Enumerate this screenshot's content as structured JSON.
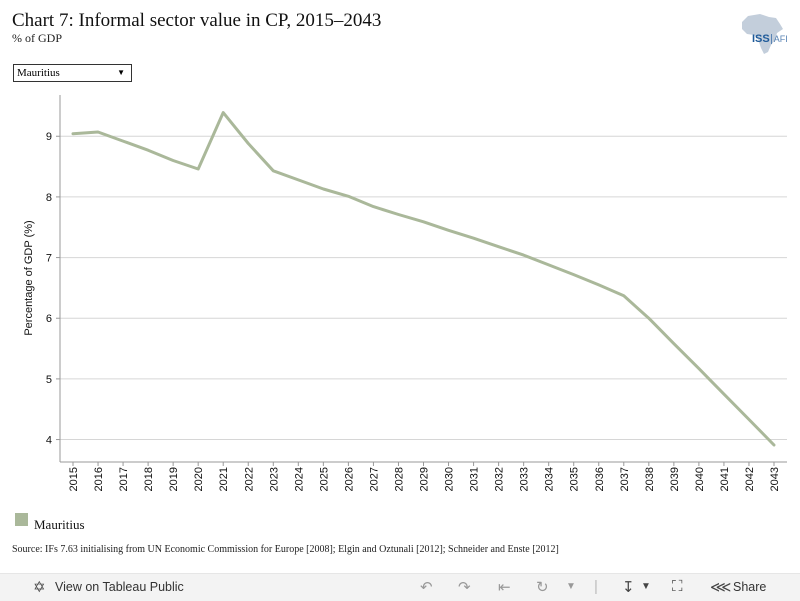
{
  "header": {
    "title": "Chart 7: Informal sector value in CP, 2015–2043",
    "subtitle": "% of GDP"
  },
  "logo": {
    "text_main": "ISS",
    "text_sub": "AFI"
  },
  "filter": {
    "selected": "Mauritius"
  },
  "chart_data": {
    "type": "line",
    "title": "",
    "xlabel": "",
    "ylabel": "Percentage of GDP (%)",
    "x": [
      "2015",
      "2016",
      "2017",
      "2018",
      "2019",
      "2020",
      "2021",
      "2022",
      "2023",
      "2024",
      "2025",
      "2026",
      "2027",
      "2028",
      "2029",
      "2030",
      "2031",
      "2032",
      "2033",
      "2034",
      "2035",
      "2036",
      "2037",
      "2038",
      "2039",
      "2040",
      "2041",
      "2042",
      "2043"
    ],
    "y_ticks": [
      4,
      5,
      6,
      7,
      8,
      9
    ],
    "ylim": [
      3.63,
      9.68
    ],
    "grid": true,
    "series": [
      {
        "name": "Mauritius",
        "color": "#aab89a",
        "values": [
          9.04,
          9.07,
          8.92,
          8.77,
          8.6,
          8.46,
          9.39,
          8.88,
          8.43,
          8.28,
          8.13,
          8.01,
          7.84,
          7.71,
          7.59,
          7.45,
          7.32,
          7.18,
          7.04,
          6.88,
          6.72,
          6.55,
          6.37,
          6.0,
          5.58,
          5.17,
          4.75,
          4.33,
          3.91
        ]
      }
    ],
    "legend": "bottom-left"
  },
  "legend": {
    "items": [
      {
        "label": "Mauritius",
        "color": "#aab89a"
      }
    ]
  },
  "source": "Source: IFs 7.63 initialising from UN Economic Commission for Europe [2008]; Elgin and Oztunali [2012]; Schneider and Enste [2012]",
  "toolbar": {
    "view_label": "View on Tableau Public",
    "share_label": "Share"
  }
}
